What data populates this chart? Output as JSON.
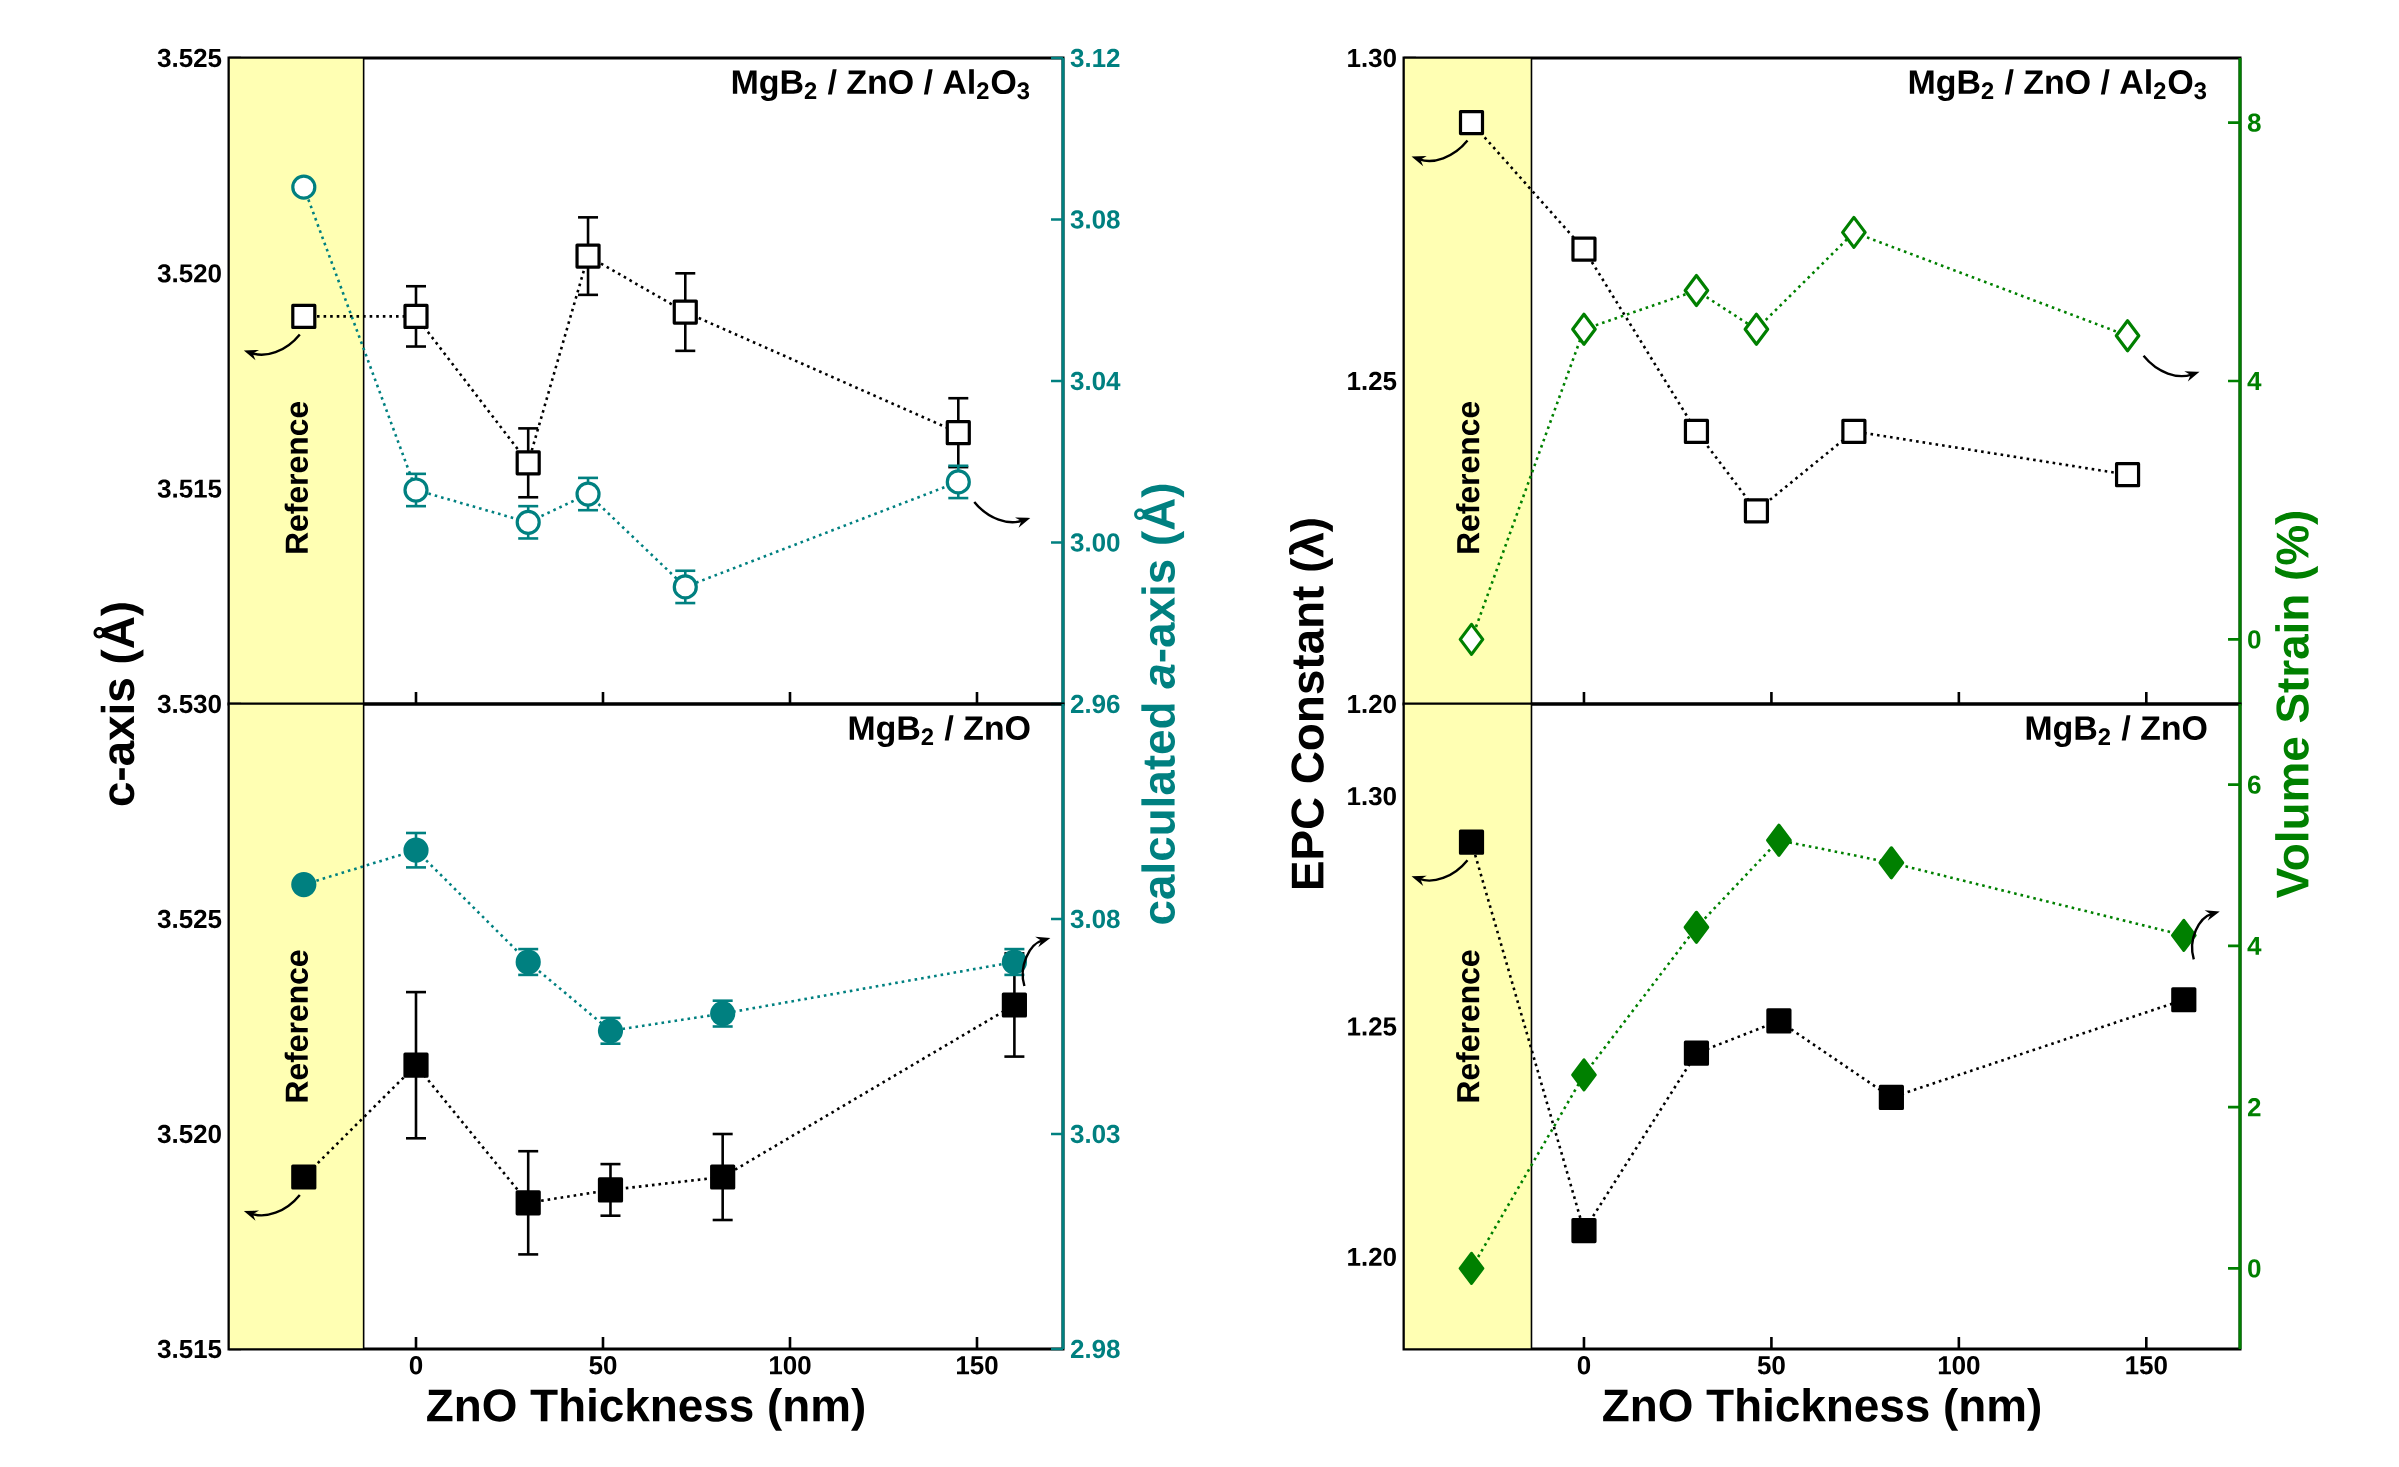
{
  "chart_data": [
    {
      "type": "line",
      "title": "MgB$_{2}$ / ZnO / Al$_{2}$O$_{3}$",
      "ylabel": "c-axis (Å)",
      "y2label": "calculated *a*-axis (Å)",
      "x": [
        -30,
        0,
        30,
        46,
        72,
        145
      ],
      "xlim": [
        -50,
        173
      ],
      "xticks": [
        0,
        50,
        100,
        150
      ],
      "ylim": [
        3.51,
        3.525
      ],
      "yticks": [
        3.515,
        {
          "value": 3.52,
          "label": "3.520"
        },
        3.525
      ],
      "y2lim": [
        2.96,
        3.12
      ],
      "y2ticks": [
        2.96,
        {
          "value": 3.0,
          "label": "3.00"
        },
        3.04,
        3.08,
        3.12
      ],
      "tick_labels": "y",
      "bands": [
        {
          "axis": "x",
          "from": -50,
          "to": -14,
          "label": "Reference",
          "color": "#ffffb3"
        }
      ],
      "series": [
        {
          "color": "#000000",
          "marker": "square",
          "line_style": "dotted",
          "values": [
            3.519,
            3.519,
            3.5156,
            3.5204,
            3.5191,
            3.5163
          ],
          "errors": [
            null,
            0.0007,
            0.0008,
            0.0009,
            0.0009,
            0.0008
          ]
        },
        {
          "color": "#008080",
          "marker": "circle",
          "line_style": "dotted",
          "axis": "y2",
          "values": [
            3.088,
            3.013,
            3.005,
            3.012,
            2.989,
            3.015
          ],
          "errors": [
            null,
            0.004,
            0.004,
            0.004,
            0.004,
            0.004
          ]
        }
      ]
    },
    {
      "type": "line",
      "title": "MgB$_{2}$ / ZnO / Al$_{2}$O$_{3}$",
      "ylabel": "EPC Constant (λ)",
      "y2label": "Volume Strain (%)",
      "x": [
        -30,
        0,
        30,
        46,
        72,
        145
      ],
      "xlim": [
        -48,
        175
      ],
      "xticks": [
        0,
        50,
        100,
        150
      ],
      "ylim": [
        1.2,
        1.3
      ],
      "yticks": [
        {
          "value": 1.2,
          "label": "1.20"
        },
        1.25,
        {
          "value": 1.3,
          "label": "1.30"
        }
      ],
      "y2lim": [
        -1,
        9
      ],
      "y2ticks": [
        0,
        4,
        8
      ],
      "tick_labels": "y",
      "bands": [
        {
          "axis": "x",
          "from": -48,
          "to": -14,
          "label": "Reference",
          "color": "#ffffb3"
        }
      ],
      "series": [
        {
          "color": "#000000",
          "marker": "square",
          "line_style": "dotted",
          "values": [
            1.29,
            1.2704,
            1.2422,
            1.2299,
            1.2422,
            1.2355
          ]
        },
        {
          "color": "#008000",
          "marker": "diamond",
          "line_style": "dotted",
          "axis": "y2",
          "values": [
            0,
            4.8,
            5.4,
            4.8,
            6.3,
            4.7
          ]
        }
      ]
    },
    {
      "type": "line",
      "title": "MgB$_{2}$ / ZnO",
      "xlabel": "ZnO Thickness (nm)",
      "x": [
        -30,
        0,
        30,
        52,
        82,
        160
      ],
      "xlim": [
        -50,
        173
      ],
      "xticks": [
        0,
        50,
        100,
        150
      ],
      "ylim": [
        3.515,
        3.53
      ],
      "yticks": [
        3.515,
        {
          "value": 3.52,
          "label": "3.520"
        },
        3.525,
        {
          "value": 3.53,
          "label": "3.530"
        }
      ],
      "y2lim": [
        2.98,
        3.13
      ],
      "y2ticks": [
        2.98,
        3.03,
        3.08
      ],
      "bands": [
        {
          "axis": "x",
          "from": -50,
          "to": -14,
          "label": "Reference",
          "color": "#ffffb3"
        }
      ],
      "series": [
        {
          "color": "#000000",
          "marker": "square",
          "line_style": "dotted",
          "values": [
            3.519,
            3.5216,
            3.5184,
            3.5187,
            3.519,
            3.523
          ],
          "errors": [
            null,
            0.0017,
            0.0012,
            0.0006,
            0.001,
            0.0012
          ]
        },
        {
          "color": "#008080",
          "marker": "circle",
          "line_style": "dotted",
          "axis": "y2",
          "values": [
            3.088,
            3.096,
            3.07,
            3.054,
            3.058,
            3.07
          ],
          "errors": [
            null,
            0.004,
            0.003,
            0.003,
            0.003,
            0.003
          ]
        }
      ]
    },
    {
      "type": "line",
      "title": "MgB$_{2}$ / ZnO",
      "xlabel": "ZnO Thickness (nm)",
      "x": [
        -30,
        0,
        30,
        52,
        82,
        160
      ],
      "xlim": [
        -48,
        175
      ],
      "xticks": [
        0,
        50,
        100,
        150
      ],
      "ylim": [
        1.18,
        1.32
      ],
      "yticks": [
        {
          "value": 1.2,
          "label": "1.20"
        },
        1.25,
        {
          "value": 1.3,
          "label": "1.30"
        }
      ],
      "y2lim": [
        -1,
        7
      ],
      "y2ticks": [
        0,
        2,
        4,
        6
      ],
      "bands": [
        {
          "axis": "x",
          "from": -48,
          "to": -14,
          "label": "Reference",
          "color": "#ffffb3"
        }
      ],
      "series": [
        {
          "color": "#000000",
          "marker": "square",
          "line_style": "dotted",
          "values": [
            1.29,
            1.2057,
            1.2442,
            1.2512,
            1.2346,
            1.2558
          ]
        },
        {
          "color": "#008000",
          "marker": "diamond",
          "line_style": "dotted",
          "axis": "y2",
          "values": [
            0,
            2.4,
            4.23,
            5.31,
            5.03,
            4.13
          ]
        }
      ]
    }
  ]
}
